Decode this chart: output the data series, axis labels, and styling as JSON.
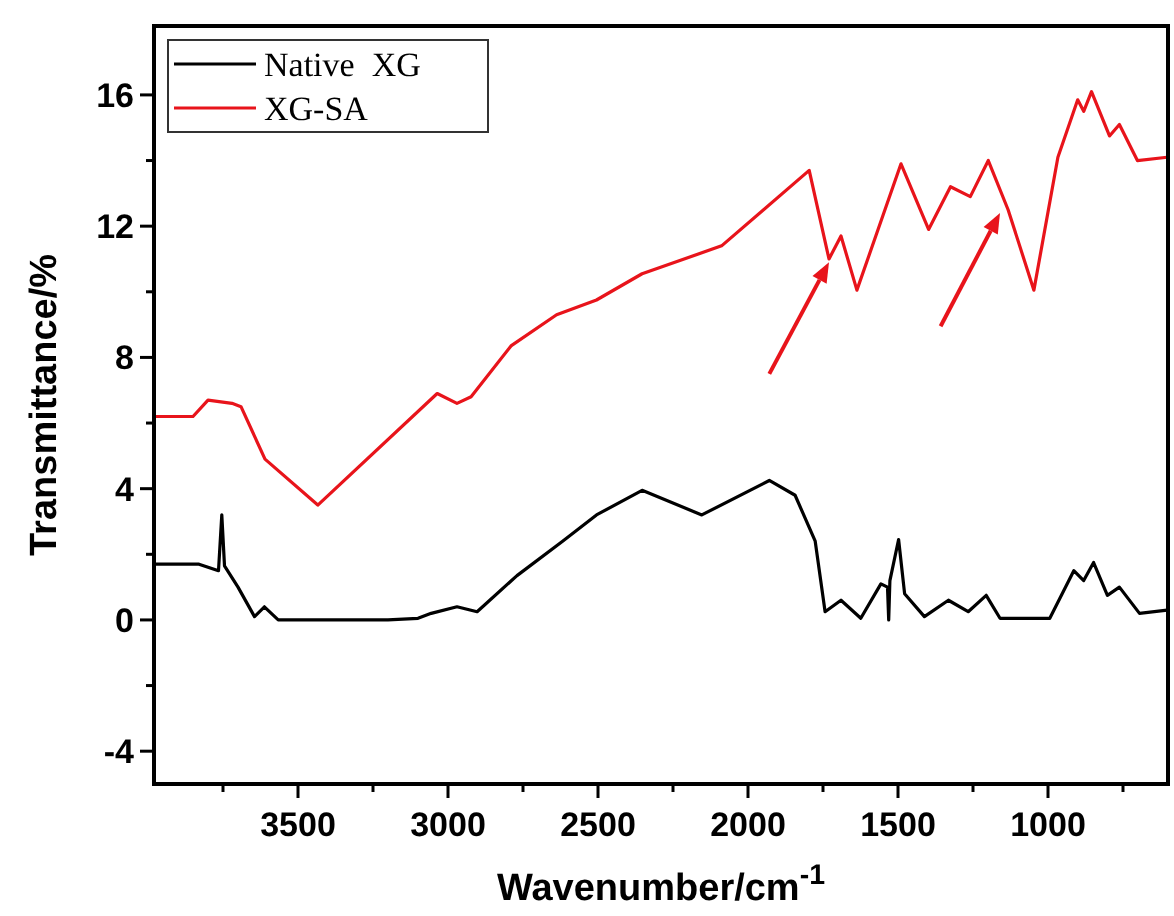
{
  "chart_data": {
    "type": "line",
    "xlabel": "Wavenumber/cm$^{-1}$",
    "ylabel": "Transmittance/%",
    "xlim": [
      3980,
      600
    ],
    "ylim": [
      -5,
      18.1
    ],
    "xticks": [
      {
        "value": 3750,
        "label": null
      },
      3500,
      {
        "value": 3250,
        "label": null
      },
      3000,
      {
        "value": 2750,
        "label": null
      },
      2500,
      {
        "value": 2250,
        "label": null
      },
      2000,
      {
        "value": 1750,
        "label": null
      },
      1500,
      {
        "value": 1250,
        "label": null
      },
      1000,
      {
        "value": 750,
        "label": null
      }
    ],
    "yticks": [
      -4,
      {
        "value": -2,
        "label": null
      },
      0,
      {
        "value": 2,
        "label": null
      },
      4,
      {
        "value": 6,
        "label": null
      },
      8,
      {
        "value": 10,
        "label": null
      },
      12,
      {
        "value": 14,
        "label": null
      },
      16
    ],
    "legend": "top left",
    "grid": false,
    "marker": "none",
    "line_style": "solid",
    "series": [
      {
        "name": "Native  XG",
        "color": "#000000",
        "x": [
          3980,
          3830,
          3765,
          3754,
          3745,
          3700,
          3645,
          3612,
          3566,
          3400,
          3200,
          3100,
          3056,
          2970,
          2903,
          2770,
          2618,
          2505,
          2353,
          2154,
          1929,
          1843,
          1776,
          1743,
          1690,
          1624,
          1557,
          1535,
          1531,
          1527,
          1498,
          1478,
          1412,
          1332,
          1266,
          1206,
          1160,
          994,
          914,
          881,
          848,
          802,
          762,
          695,
          603
        ],
        "values": [
          1.7,
          1.7,
          1.5,
          3.2,
          1.65,
          1.0,
          0.1,
          0.4,
          0,
          0,
          0,
          0.05,
          0.2,
          0.4,
          0.25,
          1.35,
          2.4,
          3.2,
          3.95,
          3.2,
          4.25,
          3.8,
          2.4,
          0.25,
          0.6,
          0.05,
          1.1,
          1.0,
          0,
          1.2,
          2.45,
          0.8,
          0.1,
          0.6,
          0.25,
          0.75,
          0.05,
          0.05,
          1.5,
          1.2,
          1.75,
          0.75,
          1.0,
          0.2,
          0.3
        ]
      },
      {
        "name": "XG-SA",
        "color": "#e8141b",
        "x": [
          3980,
          3850,
          3800,
          3720,
          3690,
          3610,
          3434,
          3036,
          2970,
          2923,
          2790,
          2638,
          2505,
          2353,
          2088,
          1796,
          1730,
          1690,
          1637,
          1490,
          1398,
          1325,
          1259,
          1199,
          1133,
          1047,
          967,
          901,
          881,
          855,
          795,
          762,
          702,
          603
        ],
        "values": [
          6.2,
          6.2,
          6.7,
          6.6,
          6.5,
          4.9,
          3.5,
          6.9,
          6.6,
          6.8,
          8.35,
          9.3,
          9.75,
          10.55,
          11.4,
          13.7,
          11.0,
          11.7,
          10.05,
          13.9,
          11.9,
          13.2,
          12.9,
          14.0,
          12.5,
          10.05,
          14.1,
          15.85,
          15.5,
          16.1,
          14.75,
          15.1,
          14.0,
          14.1
        ]
      }
    ]
  }
}
